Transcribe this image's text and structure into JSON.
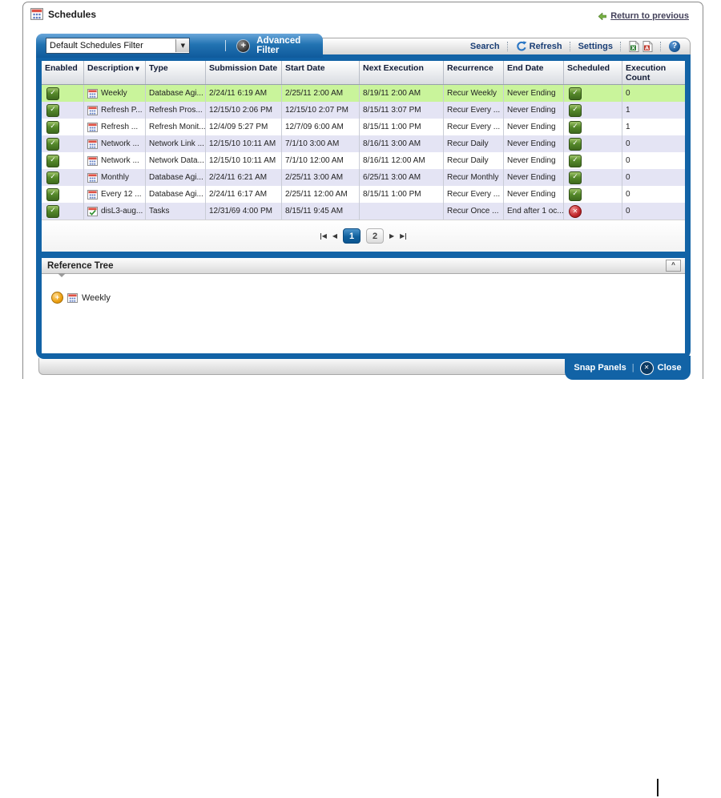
{
  "window": {
    "title": "Schedules",
    "return_link": "Return to previous"
  },
  "filter_bar": {
    "filter_value": "Default Schedules Filter",
    "advanced_filter": "Advanced Filter"
  },
  "toolbar": {
    "search": "Search",
    "refresh": "Refresh",
    "settings": "Settings"
  },
  "icons": {
    "plus": "+",
    "help": "?",
    "check": "✓",
    "cross": "✕",
    "collapse": "^",
    "expand": "+",
    "sort_desc": "▼",
    "select_arrow": "▼",
    "prev": "◀",
    "next": "▶"
  },
  "table": {
    "columns": [
      "Enabled",
      "Description",
      "Type",
      "Submission Date",
      "Start Date",
      "Next Execution",
      "Recurrence",
      "End Date",
      "Scheduled",
      "Execution Count"
    ],
    "sort_column": "Description",
    "rows": [
      {
        "enabled": true,
        "icon": "calendar",
        "description": "Weekly",
        "type": "Database Agi...",
        "submission_date": "2/24/11 6:19 AM",
        "start_date": "2/25/11 2:00 AM",
        "next_execution": "8/19/11 2:00 AM",
        "recurrence": "Recur Weekly",
        "end_date": "Never Ending",
        "scheduled": true,
        "execution_count": "0",
        "selected": true
      },
      {
        "enabled": true,
        "icon": "calendar",
        "description": "Refresh P...",
        "type": "Refresh Pros...",
        "submission_date": "12/15/10 2:06 PM",
        "start_date": "12/15/10 2:07 PM",
        "next_execution": "8/15/11 3:07 PM",
        "recurrence": "Recur Every ...",
        "end_date": "Never Ending",
        "scheduled": true,
        "execution_count": "1",
        "selected": false
      },
      {
        "enabled": true,
        "icon": "calendar",
        "description": "Refresh ...",
        "type": "Refresh Monit...",
        "submission_date": "12/4/09 5:27 PM",
        "start_date": "12/7/09 6:00 AM",
        "next_execution": "8/15/11 1:00 PM",
        "recurrence": "Recur Every ...",
        "end_date": "Never Ending",
        "scheduled": true,
        "execution_count": "1",
        "selected": false
      },
      {
        "enabled": true,
        "icon": "calendar",
        "description": "Network ...",
        "type": "Network Link ...",
        "submission_date": "12/15/10 10:11 AM",
        "start_date": "7/1/10 3:00 AM",
        "next_execution": "8/16/11 3:00 AM",
        "recurrence": "Recur Daily",
        "end_date": "Never Ending",
        "scheduled": true,
        "execution_count": "0",
        "selected": false
      },
      {
        "enabled": true,
        "icon": "calendar",
        "description": "Network ...",
        "type": "Network Data...",
        "submission_date": "12/15/10 10:11 AM",
        "start_date": "7/1/10 12:00 AM",
        "next_execution": "8/16/11 12:00 AM",
        "recurrence": "Recur Daily",
        "end_date": "Never Ending",
        "scheduled": true,
        "execution_count": "0",
        "selected": false
      },
      {
        "enabled": true,
        "icon": "calendar",
        "description": "Monthly",
        "type": "Database Agi...",
        "submission_date": "2/24/11 6:21 AM",
        "start_date": "2/25/11 3:00 AM",
        "next_execution": "6/25/11 3:00 AM",
        "recurrence": "Recur Monthly",
        "end_date": "Never Ending",
        "scheduled": true,
        "execution_count": "0",
        "selected": false
      },
      {
        "enabled": true,
        "icon": "calendar",
        "description": "Every 12 ...",
        "type": "Database Agi...",
        "submission_date": "2/24/11 6:17 AM",
        "start_date": "2/25/11 12:00 AM",
        "next_execution": "8/15/11 1:00 PM",
        "recurrence": "Recur Every ...",
        "end_date": "Never Ending",
        "scheduled": true,
        "execution_count": "0",
        "selected": false
      },
      {
        "enabled": true,
        "icon": "calendar-check",
        "description": "disL3-aug...",
        "type": "Tasks",
        "submission_date": "12/31/69 4:00 PM",
        "start_date": "8/15/11 9:45 AM",
        "next_execution": "",
        "recurrence": "Recur Once ...",
        "end_date": "End after 1 oc...",
        "scheduled": false,
        "execution_count": "0",
        "selected": false
      }
    ]
  },
  "pagination": {
    "pages": [
      "1",
      "2"
    ],
    "current": "1"
  },
  "reference_tree": {
    "title": "Reference Tree",
    "items": [
      "Weekly"
    ]
  },
  "footer": {
    "snap_panels": "Snap Panels",
    "close": "Close"
  },
  "colors": {
    "panel_blue": "#1263a6",
    "selected_row": "#c9f49b",
    "alt_row": "#e4e4f4",
    "enabled_green": "#568a2b",
    "disabled_red": "#c1272d"
  }
}
